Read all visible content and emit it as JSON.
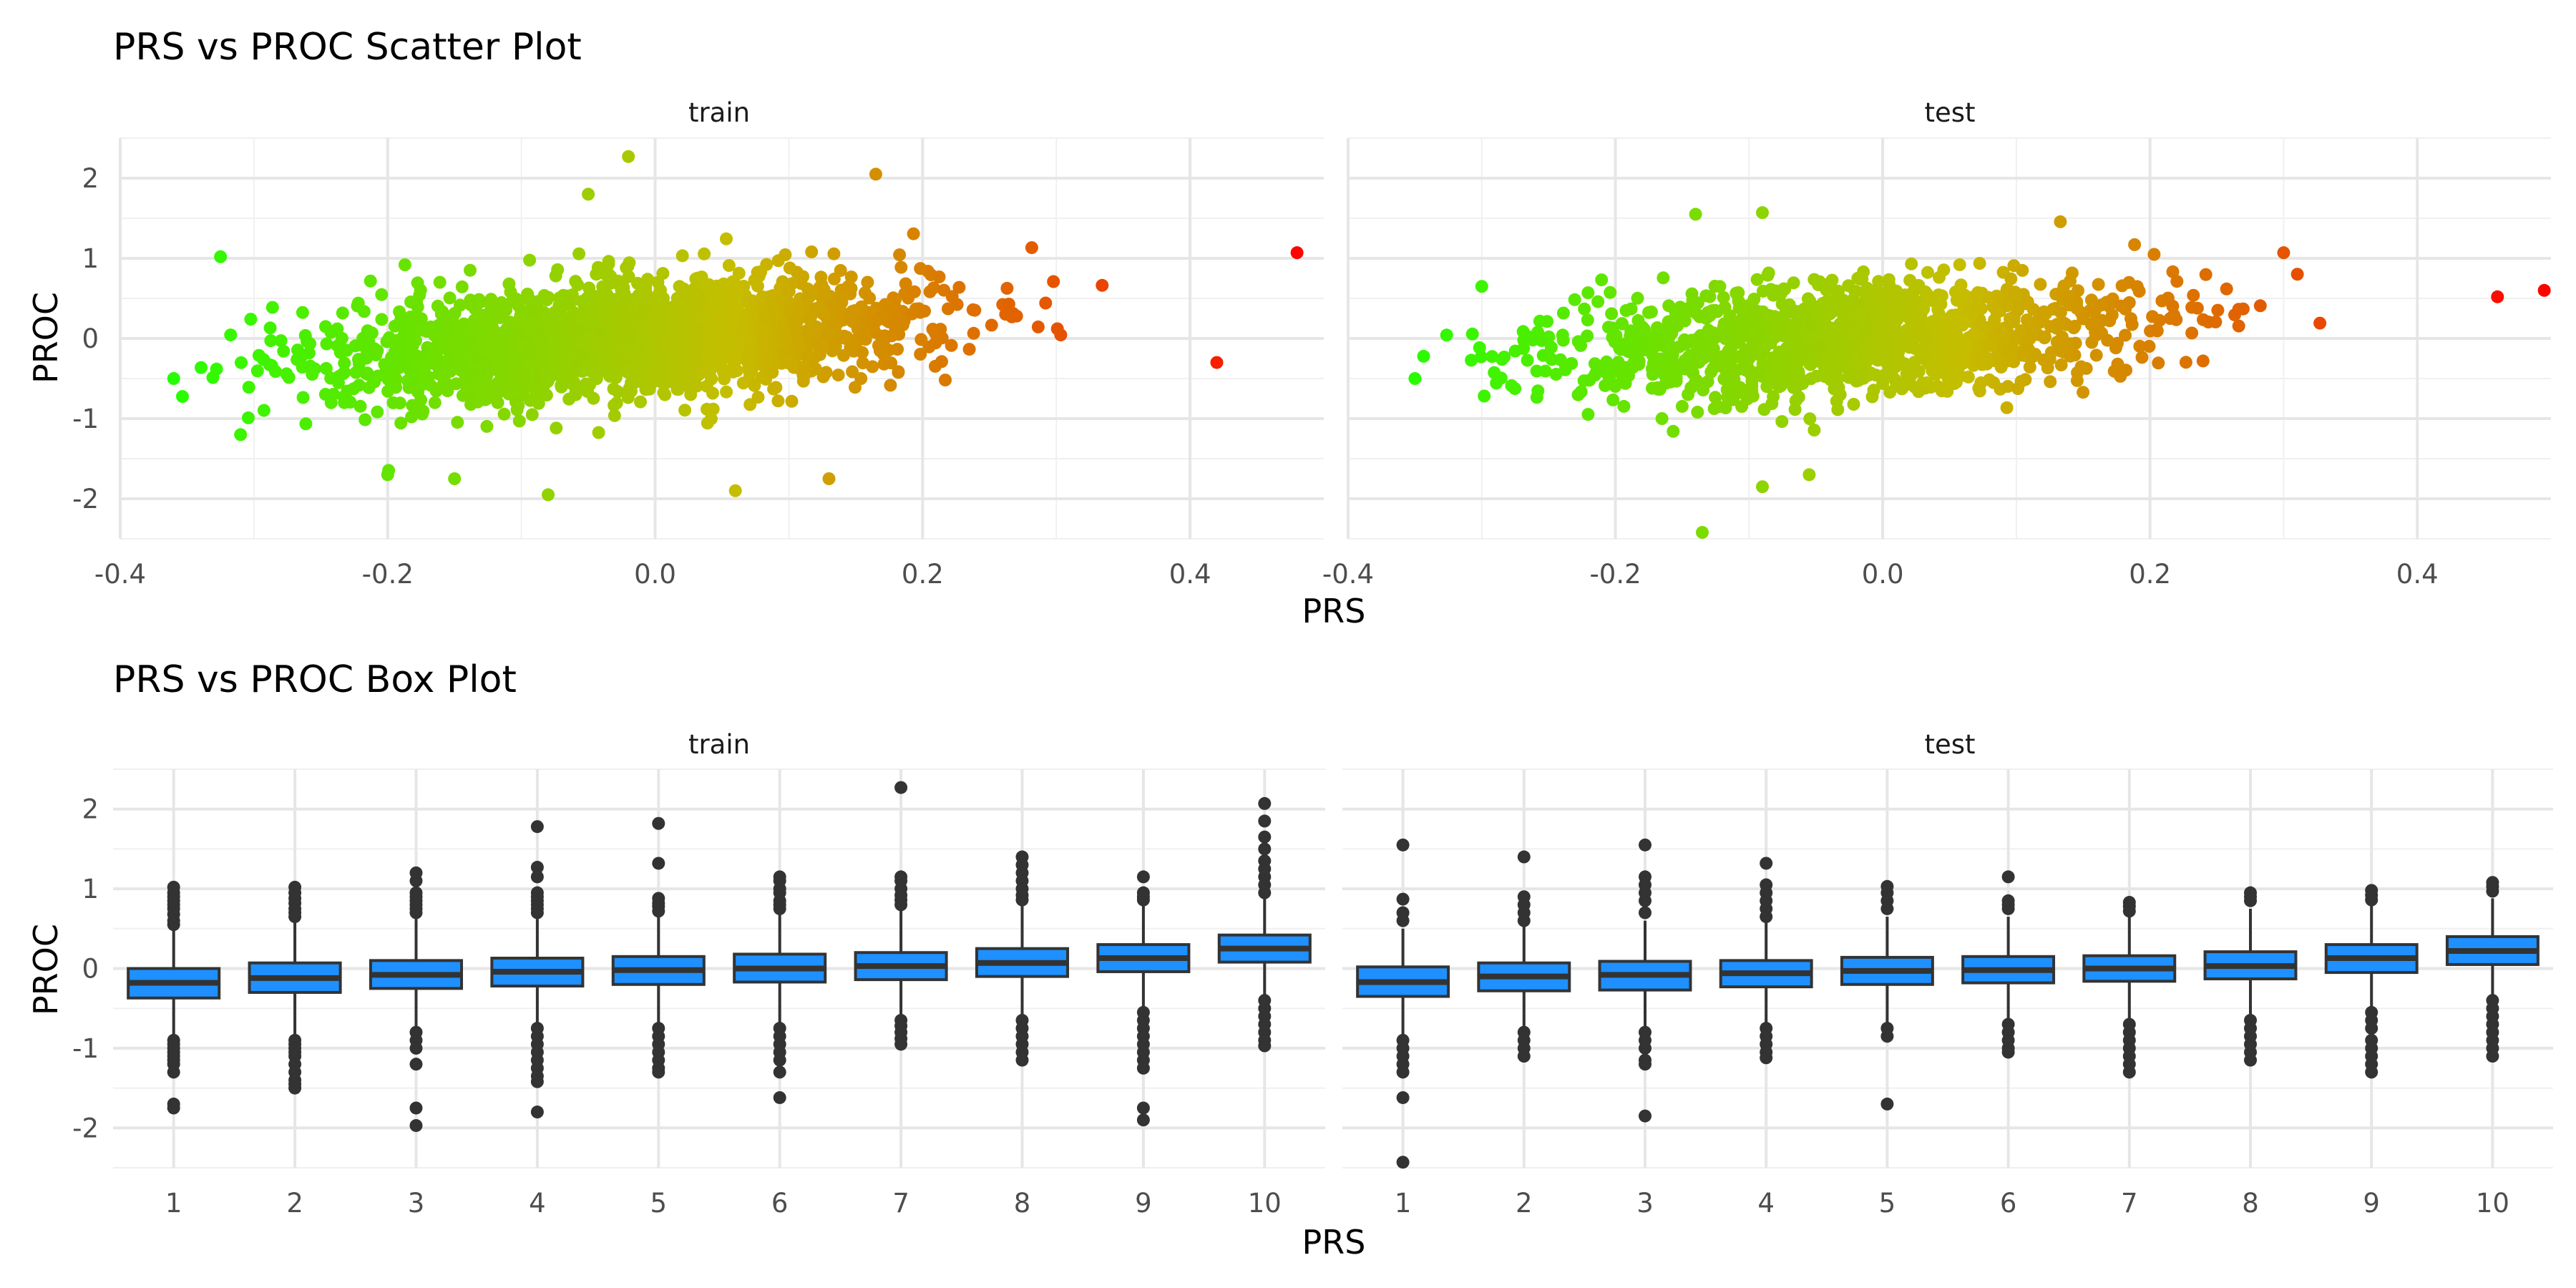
{
  "chart_data": [
    {
      "type": "scatter",
      "title": "PRS vs PROC Scatter Plot",
      "xlabel": "PRS",
      "ylabel": "PROC",
      "facets": [
        "train",
        "test"
      ],
      "xlim": [
        -0.4,
        0.5
      ],
      "ylim": [
        -2.5,
        2.5
      ],
      "x_ticks": [
        "-0.4",
        "-0.2",
        "0.0",
        "0.2",
        "0.4"
      ],
      "x_tick_values": [
        -0.4,
        -0.2,
        0.0,
        0.2,
        0.4
      ],
      "y_ticks": [
        "-2",
        "-1",
        "0",
        "1",
        "2"
      ],
      "y_tick_values": [
        -2,
        -1,
        0,
        1,
        2
      ],
      "grid": true,
      "color_scale": {
        "low": "#22ff00",
        "mid": "#c6bd00",
        "high": "#ff0000"
      },
      "trend": {
        "train": {
          "slope": 1.7,
          "sd": 0.35
        },
        "test": {
          "slope": 1.5,
          "sd": 0.35
        }
      },
      "notable_points": {
        "train": [
          {
            "x": -0.325,
            "y": 1.02
          },
          {
            "x": -0.31,
            "y": -1.2
          },
          {
            "x": -0.36,
            "y": -0.5
          },
          {
            "x": -0.2,
            "y": -1.7
          },
          {
            "x": -0.15,
            "y": -1.75
          },
          {
            "x": -0.08,
            "y": -1.95
          },
          {
            "x": -0.05,
            "y": 1.8
          },
          {
            "x": -0.02,
            "y": 2.27
          },
          {
            "x": 0.06,
            "y": -1.9
          },
          {
            "x": 0.13,
            "y": -1.75
          },
          {
            "x": 0.165,
            "y": 2.05
          },
          {
            "x": 0.48,
            "y": 1.07
          },
          {
            "x": 0.42,
            "y": -0.3
          }
        ],
        "test": [
          {
            "x": -0.35,
            "y": -0.5
          },
          {
            "x": -0.3,
            "y": 0.65
          },
          {
            "x": -0.14,
            "y": 1.55
          },
          {
            "x": -0.09,
            "y": 1.57
          },
          {
            "x": -0.135,
            "y": -2.42
          },
          {
            "x": -0.09,
            "y": -1.85
          },
          {
            "x": -0.055,
            "y": -1.7
          },
          {
            "x": 0.3,
            "y": 1.07
          },
          {
            "x": 0.495,
            "y": 0.6
          },
          {
            "x": 0.46,
            "y": 0.52
          }
        ]
      }
    },
    {
      "type": "box",
      "title": "PRS vs PROC Box Plot",
      "xlabel": "PRS",
      "ylabel": "PROC",
      "facets": [
        "train",
        "test"
      ],
      "categories": [
        "1",
        "2",
        "3",
        "4",
        "5",
        "6",
        "7",
        "8",
        "9",
        "10"
      ],
      "ylim": [
        -2.5,
        2.5
      ],
      "y_ticks": [
        "-2",
        "-1",
        "0",
        "1",
        "2"
      ],
      "y_tick_values": [
        -2,
        -1,
        0,
        1,
        2
      ],
      "grid": true,
      "box_fill": "#1e90ff",
      "box_line": "#333333",
      "train": [
        {
          "q1": -0.37,
          "median": -0.18,
          "q3": 0.0,
          "lower": -0.85,
          "upper": 0.5,
          "outliers": [
            1.02,
            0.95,
            0.9,
            0.85,
            0.8,
            0.75,
            0.68,
            0.6,
            0.55,
            -0.9,
            -0.95,
            -1.0,
            -1.05,
            -1.1,
            -1.15,
            -1.2,
            -1.3,
            -1.7,
            -1.75
          ]
        },
        {
          "q1": -0.3,
          "median": -0.12,
          "q3": 0.07,
          "lower": -0.85,
          "upper": 0.6,
          "outliers": [
            1.02,
            0.95,
            0.88,
            0.82,
            0.75,
            0.7,
            0.65,
            -0.9,
            -0.95,
            -1.0,
            -1.05,
            -1.1,
            -1.2,
            -1.3,
            -1.4,
            -1.45,
            -1.5
          ]
        },
        {
          "q1": -0.25,
          "median": -0.08,
          "q3": 0.1,
          "lower": -0.75,
          "upper": 0.62,
          "outliers": [
            1.2,
            1.1,
            0.95,
            0.9,
            0.85,
            0.8,
            0.75,
            0.7,
            -0.8,
            -0.9,
            -1.0,
            -1.2,
            -1.75,
            -1.97
          ]
        },
        {
          "q1": -0.22,
          "median": -0.04,
          "q3": 0.13,
          "lower": -0.7,
          "upper": 0.62,
          "outliers": [
            1.78,
            1.27,
            1.15,
            0.95,
            0.9,
            0.85,
            0.8,
            0.75,
            0.7,
            -0.75,
            -0.85,
            -0.95,
            -1.05,
            -1.15,
            -1.25,
            -1.35,
            -1.42,
            -1.8
          ]
        },
        {
          "q1": -0.2,
          "median": -0.02,
          "q3": 0.15,
          "lower": -0.7,
          "upper": 0.65,
          "outliers": [
            1.82,
            1.32,
            0.88,
            0.82,
            0.78,
            0.72,
            -0.75,
            -0.85,
            -0.95,
            -1.05,
            -1.15,
            -1.25,
            -1.3
          ]
        },
        {
          "q1": -0.17,
          "median": 0.0,
          "q3": 0.18,
          "lower": -0.7,
          "upper": 0.7,
          "outliers": [
            1.15,
            1.1,
            1.0,
            0.95,
            0.85,
            0.8,
            0.75,
            -0.75,
            -0.85,
            -0.95,
            -1.05,
            -1.15,
            -1.3,
            -1.62
          ]
        },
        {
          "q1": -0.14,
          "median": 0.03,
          "q3": 0.2,
          "lower": -0.6,
          "upper": 0.75,
          "outliers": [
            2.27,
            1.15,
            1.1,
            1.0,
            0.92,
            0.86,
            0.8,
            -0.65,
            -0.72,
            -0.8,
            -0.88,
            -0.95
          ]
        },
        {
          "q1": -0.1,
          "median": 0.07,
          "q3": 0.25,
          "lower": -0.6,
          "upper": 0.8,
          "outliers": [
            1.4,
            1.3,
            1.2,
            1.1,
            1.0,
            0.92,
            0.86,
            -0.65,
            -0.75,
            -0.85,
            -0.95,
            -1.05,
            -1.15
          ]
        },
        {
          "q1": -0.04,
          "median": 0.13,
          "q3": 0.3,
          "lower": -0.5,
          "upper": 0.8,
          "outliers": [
            1.15,
            0.95,
            0.9,
            0.86,
            -0.55,
            -0.65,
            -0.75,
            -0.85,
            -0.95,
            -1.05,
            -1.15,
            -1.25,
            -1.75,
            -1.9
          ]
        },
        {
          "q1": 0.08,
          "median": 0.25,
          "q3": 0.42,
          "lower": -0.35,
          "upper": 0.9,
          "outliers": [
            2.07,
            1.85,
            1.65,
            1.5,
            1.35,
            1.25,
            1.15,
            1.05,
            0.95,
            -0.4,
            -0.5,
            -0.6,
            -0.7,
            -0.8,
            -0.9,
            -0.97
          ]
        }
      ],
      "test": [
        {
          "q1": -0.35,
          "median": -0.17,
          "q3": 0.02,
          "lower": -0.85,
          "upper": 0.5,
          "outliers": [
            1.55,
            0.87,
            0.7,
            0.6,
            -0.9,
            -1.0,
            -1.1,
            -1.2,
            -1.3,
            -1.62,
            -2.43
          ]
        },
        {
          "q1": -0.28,
          "median": -0.1,
          "q3": 0.07,
          "lower": -0.75,
          "upper": 0.55,
          "outliers": [
            1.4,
            0.9,
            0.8,
            0.7,
            0.6,
            -0.8,
            -0.9,
            -1.0,
            -1.1
          ]
        },
        {
          "q1": -0.27,
          "median": -0.08,
          "q3": 0.09,
          "lower": -0.75,
          "upper": 0.6,
          "outliers": [
            1.55,
            1.15,
            1.05,
            0.95,
            0.85,
            0.7,
            -0.8,
            -0.9,
            -1.0,
            -1.15,
            -1.2,
            -1.85
          ]
        },
        {
          "q1": -0.23,
          "median": -0.06,
          "q3": 0.1,
          "lower": -0.7,
          "upper": 0.6,
          "outliers": [
            1.32,
            1.05,
            0.95,
            0.85,
            0.75,
            0.65,
            -0.75,
            -0.85,
            -0.95,
            -1.05,
            -1.12
          ]
        },
        {
          "q1": -0.2,
          "median": -0.03,
          "q3": 0.14,
          "lower": -0.7,
          "upper": 0.65,
          "outliers": [
            1.03,
            0.95,
            0.85,
            0.75,
            -0.75,
            -0.85,
            -1.7
          ]
        },
        {
          "q1": -0.18,
          "median": -0.02,
          "q3": 0.15,
          "lower": -0.7,
          "upper": 0.65,
          "outliers": [
            1.15,
            0.85,
            0.8,
            0.75,
            -0.7,
            -0.8,
            -0.9,
            -1.0,
            -1.05
          ]
        },
        {
          "q1": -0.16,
          "median": 0.0,
          "q3": 0.16,
          "lower": -0.65,
          "upper": 0.65,
          "outliers": [
            0.83,
            0.78,
            0.72,
            -0.7,
            -0.8,
            -0.9,
            -1.0,
            -1.1,
            -1.2,
            -1.3
          ]
        },
        {
          "q1": -0.13,
          "median": 0.03,
          "q3": 0.21,
          "lower": -0.6,
          "upper": 0.75,
          "outliers": [
            0.95,
            0.9,
            0.85,
            -0.65,
            -0.75,
            -0.85,
            -0.95,
            -1.05,
            -1.15
          ]
        },
        {
          "q1": -0.05,
          "median": 0.13,
          "q3": 0.3,
          "lower": -0.5,
          "upper": 0.82,
          "outliers": [
            0.98,
            0.92,
            0.86,
            -0.55,
            -0.65,
            -0.75,
            -0.9,
            -1.0,
            -1.1,
            -1.2,
            -1.3
          ]
        },
        {
          "q1": 0.05,
          "median": 0.22,
          "q3": 0.4,
          "lower": -0.35,
          "upper": 0.88,
          "outliers": [
            1.08,
            1.03,
            0.97,
            -0.4,
            -0.5,
            -0.6,
            -0.7,
            -0.8,
            -0.9,
            -1.0,
            -1.1
          ]
        }
      ]
    }
  ]
}
